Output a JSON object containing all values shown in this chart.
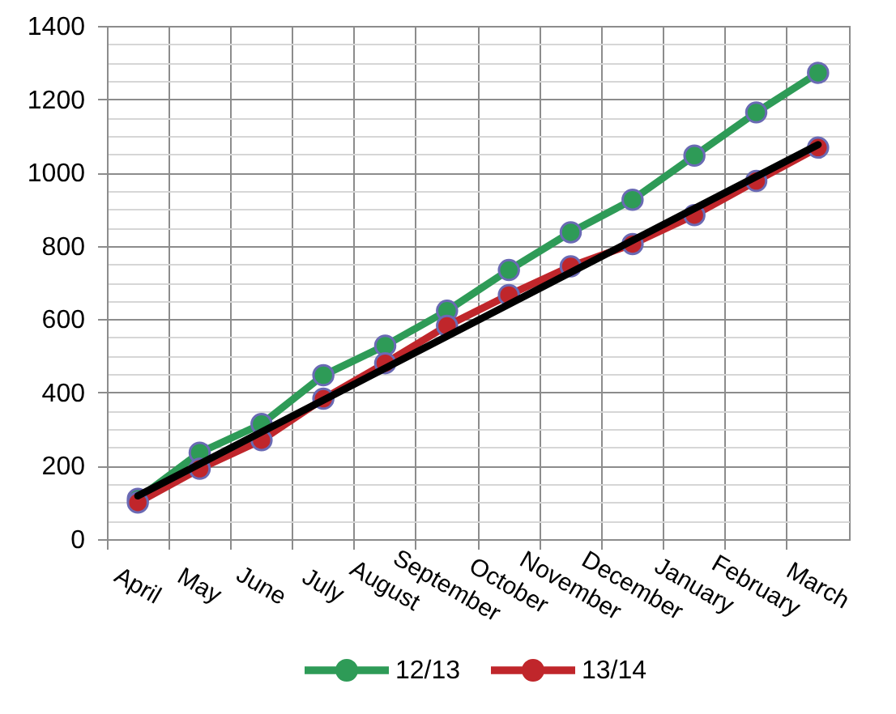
{
  "chart_data": {
    "type": "line",
    "categories": [
      "April",
      "May",
      "June",
      "July",
      "August",
      "September",
      "October",
      "November",
      "December",
      "January",
      "February",
      "March"
    ],
    "series": [
      {
        "name": "12/13",
        "color": "#2e9b57",
        "values": [
          110,
          236,
          314,
          447,
          528,
          623,
          734,
          837,
          926,
          1046,
          1164,
          1272
        ]
      },
      {
        "name": "13/14",
        "color": "#c0262b",
        "values": [
          100,
          192,
          270,
          383,
          480,
          582,
          666,
          744,
          805,
          884,
          977,
          1068
        ]
      },
      {
        "color": "#000000",
        "x": [
          "April",
          "March"
        ],
        "values": [
          118,
          1076
        ],
        "marker": "none"
      }
    ],
    "ylim": [
      0,
      1400
    ],
    "yticks": [
      0,
      {
        "value": 50,
        "label": null
      },
      {
        "value": 100,
        "label": null
      },
      {
        "value": 150,
        "label": null
      },
      200,
      {
        "value": 250,
        "label": null
      },
      {
        "value": 300,
        "label": null
      },
      {
        "value": 350,
        "label": null
      },
      400,
      {
        "value": 450,
        "label": null
      },
      {
        "value": 500,
        "label": null
      },
      {
        "value": 550,
        "label": null
      },
      600,
      {
        "value": 650,
        "label": null
      },
      {
        "value": 700,
        "label": null
      },
      {
        "value": 750,
        "label": null
      },
      800,
      {
        "value": 850,
        "label": null
      },
      {
        "value": 900,
        "label": null
      },
      {
        "value": 950,
        "label": null
      },
      1000,
      {
        "value": 1050,
        "label": null
      },
      {
        "value": 1100,
        "label": null
      },
      {
        "value": 1150,
        "label": null
      },
      1200,
      {
        "value": 1250,
        "label": null
      },
      {
        "value": 1300,
        "label": null
      },
      {
        "value": 1350,
        "label": null
      },
      1400
    ],
    "grid": true,
    "legend": "bottom",
    "marker": "circle",
    "line_style": "solid"
  }
}
